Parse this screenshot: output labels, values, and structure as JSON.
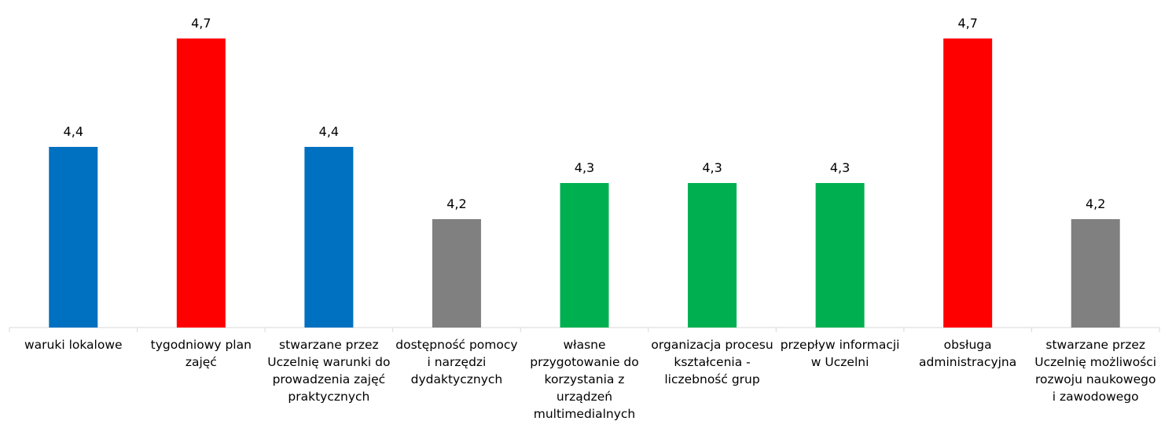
{
  "chart_data": {
    "type": "bar",
    "categories": [
      "waruki lokalowe",
      "tygodniowy plan zajęć",
      "stwarzane przez Uczelnię warunki do prowadzenia zajęć praktycznych",
      "dostępność pomocy i narzędzi dydaktycznych",
      "własne przygotowanie do korzystania z urządzeń multimedialnych",
      "organizacja procesu kształcenia - liczebność grup",
      "przepływ informacji w Uczelni",
      "obsługa administracyjna",
      "stwarzane przez Uczelnię możliwości rozwoju naukowego i zawodowego"
    ],
    "values": [
      4.4,
      4.7,
      4.4,
      4.2,
      4.3,
      4.3,
      4.3,
      4.7,
      4.2
    ],
    "value_labels": [
      "4,4",
      "4,7",
      "4,4",
      "4,2",
      "4,3",
      "4,3",
      "4,3",
      "4,7",
      "4,2"
    ],
    "colors": [
      "#0070c0",
      "#ff0000",
      "#0070c0",
      "#808080",
      "#00b050",
      "#00b050",
      "#00b050",
      "#ff0000",
      "#808080"
    ],
    "ylim": [
      3.9,
      4.8
    ]
  }
}
